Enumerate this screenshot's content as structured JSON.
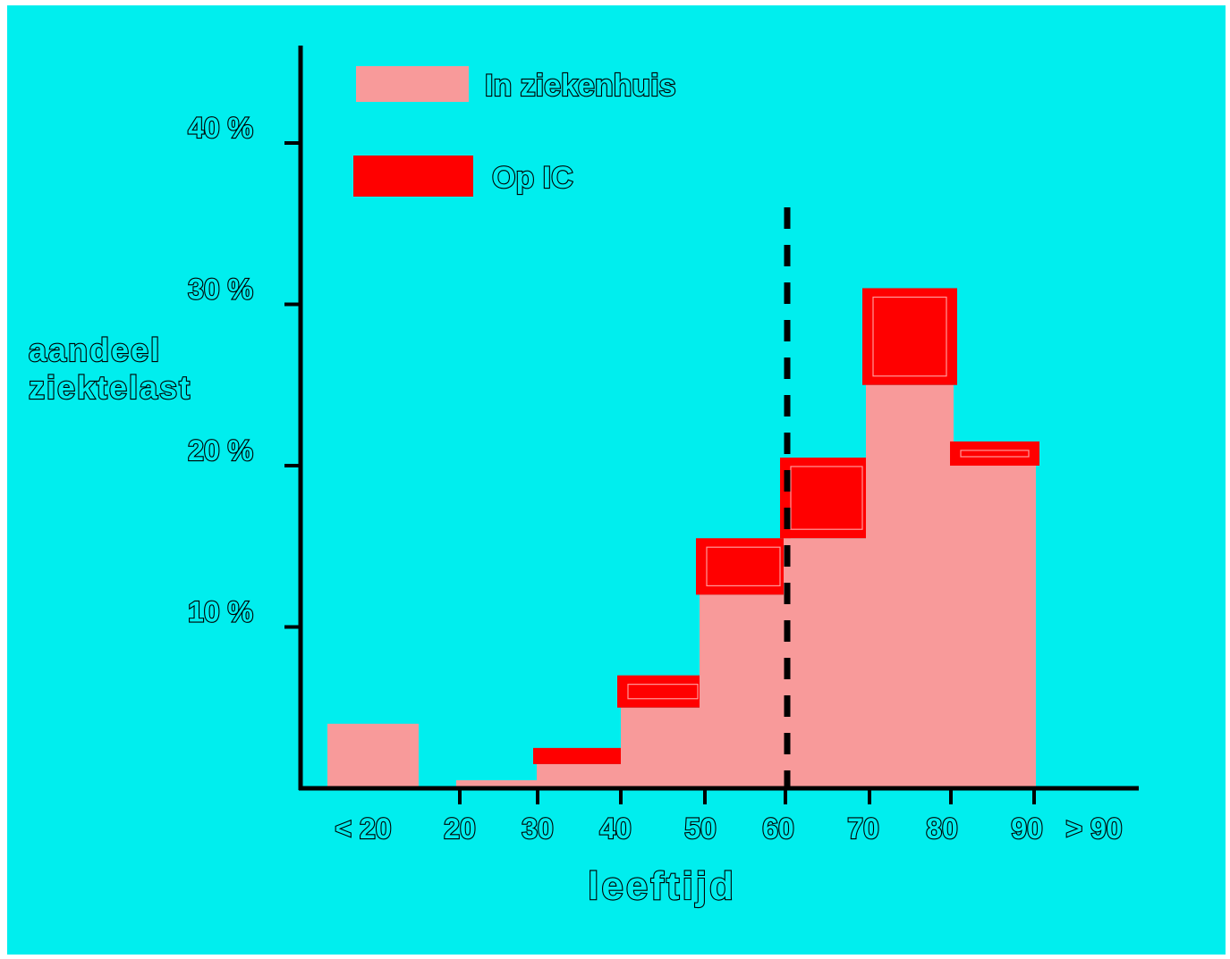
{
  "chart_data": {
    "type": "bar",
    "stacked": true,
    "categories": [
      "< 20",
      "20-30",
      "30-40",
      "40-50",
      "50-60",
      "60-70",
      "70-80",
      "80-90"
    ],
    "x_tick_labels": [
      "< 20",
      "20",
      "30",
      "40",
      "50",
      "60",
      "70",
      "80",
      "90",
      "> 90"
    ],
    "series": [
      {
        "name": "In ziekenhuis",
        "color": "#f89a9a",
        "values": [
          4,
          0.5,
          1.5,
          5,
          12,
          15.5,
          25,
          20
        ]
      },
      {
        "name": "Op IC",
        "color": "#ff0000",
        "values": [
          0,
          0,
          1,
          2,
          3.5,
          5,
          6,
          1.5
        ]
      }
    ],
    "y_tick_labels": [
      "10 %",
      "20 %",
      "30 %",
      "40 %"
    ],
    "y_ticks": [
      10,
      20,
      30,
      40
    ],
    "ylim": [
      0,
      46
    ],
    "ylabel_lines": [
      "aandeel",
      "ziektelast"
    ],
    "xlabel": "leeftijd",
    "reference_line": {
      "x": 60,
      "style": "dashed"
    },
    "legend_placement": "top-left",
    "grid": false,
    "background": "#00eeee"
  }
}
